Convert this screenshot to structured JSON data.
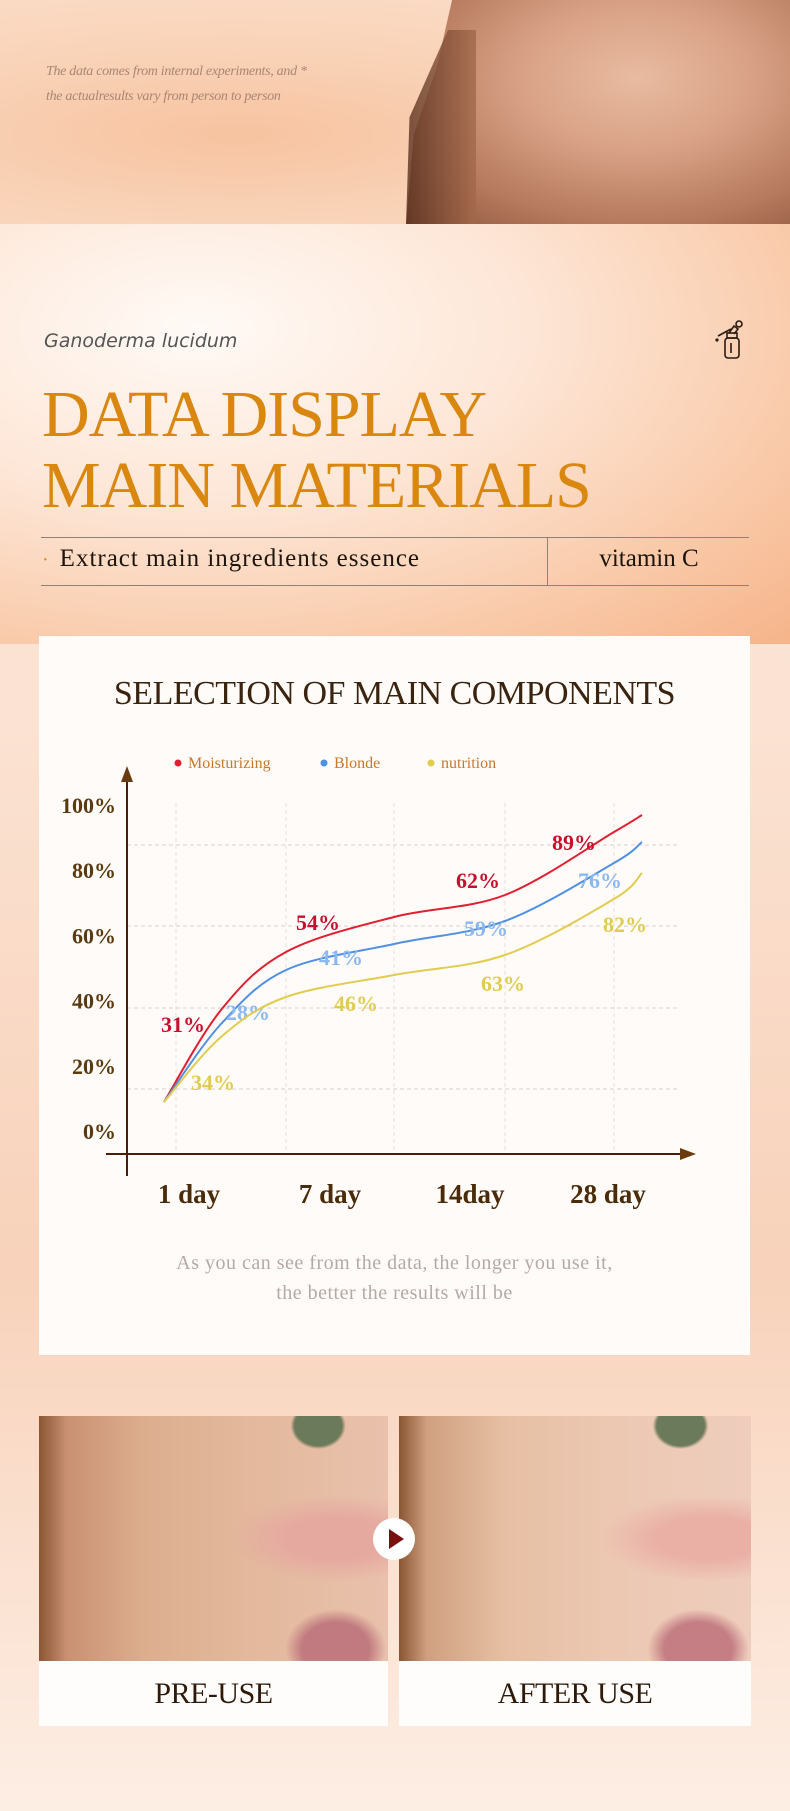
{
  "hero": {
    "disclaimer_line1": "The data comes from internal experiments, and *",
    "disclaimer_line2": "the actualresults vary from person to person"
  },
  "intro": {
    "subtitle": "Ganoderma lucidum",
    "icon": "dropper-bottle-icon",
    "title_line1": "DATA DISPLAY",
    "title_line2": "MAIN MATERIALS",
    "feature": "Extract main ingredients essence",
    "feature_bullet": "·",
    "ingredient": "vitamin C",
    "accent_color": "#d9870f"
  },
  "chart_data": {
    "type": "line",
    "title": "SELECTION OF MAIN COMPONENTS",
    "categories": [
      "1 day",
      "7 day",
      "14day",
      "28 day"
    ],
    "y_ticks": [
      "100%",
      "80%",
      "60%",
      "40%",
      "20%",
      "0%"
    ],
    "ylim": [
      0,
      100
    ],
    "grid": true,
    "legend_position": "top",
    "series": [
      {
        "name": "Moisturizing",
        "labels": [
          "31%",
          "54%",
          "62%",
          "89%"
        ],
        "values": [
          31,
          54,
          62,
          89
        ],
        "color": "#e02030",
        "label_color": "#c8102e"
      },
      {
        "name": "Blonde",
        "labels": [
          "28%",
          "41%",
          "59%",
          "76%"
        ],
        "values": [
          28,
          41,
          59,
          76
        ],
        "color": "#5090e0",
        "label_color": "#8ab8f0"
      },
      {
        "name": "nutrition",
        "labels": [
          "34%",
          "46%",
          "63%",
          "82%"
        ],
        "values": [
          34,
          46,
          63,
          82
        ],
        "color": "#e2cc50",
        "label_color": "#e0cc50"
      }
    ],
    "caption_line1": "As you can see from the data, the longer you use it,",
    "caption_line2": "the better the results will be"
  },
  "comparison": {
    "before_label": "PRE-USE",
    "after_label": "AFTER USE",
    "play_icon": "play-icon"
  }
}
